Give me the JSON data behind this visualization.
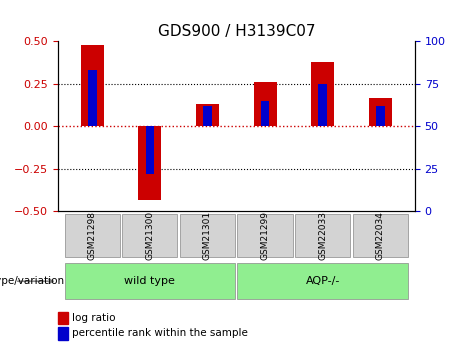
{
  "title": "GDS900 / H3139C07",
  "samples": [
    "GSM21298",
    "GSM21300",
    "GSM21301",
    "GSM21299",
    "GSM22033",
    "GSM22034"
  ],
  "log_ratios": [
    0.48,
    -0.43,
    0.13,
    0.26,
    0.38,
    0.17
  ],
  "percentile_ranks": [
    83,
    22,
    62,
    65,
    75,
    62
  ],
  "ylim_left": [
    -0.5,
    0.5
  ],
  "ylim_right": [
    0,
    100
  ],
  "yticks_left": [
    -0.5,
    -0.25,
    0,
    0.25,
    0.5
  ],
  "yticks_right": [
    0,
    25,
    50,
    75,
    100
  ],
  "bar_color_red": "#cc0000",
  "bar_color_blue": "#0000cc",
  "zero_line_color": "#cc0000",
  "grid_color": "#000000",
  "wildtype_samples": [
    "GSM21298",
    "GSM21300",
    "GSM21301"
  ],
  "aqp_samples": [
    "GSM21299",
    "GSM22033",
    "GSM22034"
  ],
  "wildtype_label": "wild type",
  "aqp_label": "AQP-/-",
  "group_bg_color": "#90ee90",
  "sample_bg_color": "#d3d3d3",
  "legend_log_ratio": "log ratio",
  "legend_percentile": "percentile rank within the sample",
  "genotype_label": "genotype/variation",
  "bar_width": 0.4,
  "blue_bar_width": 0.15
}
